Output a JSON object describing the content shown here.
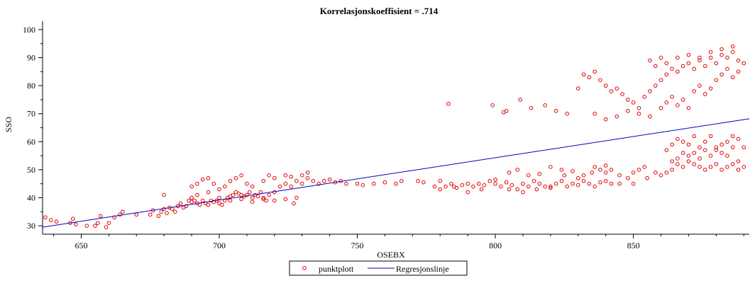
{
  "chart_data": {
    "type": "scatter",
    "title": "Korrelasjonskoeffisient =  .714",
    "xlabel": "OSEBX",
    "ylabel": "SSO",
    "xlim": [
      636,
      892
    ],
    "ylim": [
      27,
      103
    ],
    "x_ticks": [
      650,
      700,
      750,
      800,
      850
    ],
    "y_ticks": [
      30,
      40,
      50,
      60,
      70,
      80,
      90,
      100
    ],
    "colors": {
      "points": "#e00000",
      "line": "#0000c0"
    },
    "legend": {
      "position": "bottom",
      "entries": [
        {
          "label": "punktplott",
          "kind": "marker"
        },
        {
          "label": "Regresjonslinje",
          "kind": "line"
        }
      ]
    },
    "series": [
      {
        "name": "punktplott",
        "kind": "scatter",
        "points": [
          [
            637,
            33
          ],
          [
            639,
            32
          ],
          [
            641,
            31.5
          ],
          [
            646,
            31
          ],
          [
            647,
            32.5
          ],
          [
            648,
            30.5
          ],
          [
            652,
            30
          ],
          [
            655,
            30
          ],
          [
            656,
            31
          ],
          [
            657,
            33.5
          ],
          [
            659,
            29.5
          ],
          [
            660,
            31
          ],
          [
            662,
            33
          ],
          [
            664,
            34
          ],
          [
            665,
            35
          ],
          [
            670,
            34
          ],
          [
            675,
            34
          ],
          [
            676,
            35.5
          ],
          [
            678,
            33.5
          ],
          [
            679,
            35
          ],
          [
            680,
            36
          ],
          [
            681,
            34.5
          ],
          [
            682,
            36.5
          ],
          [
            683,
            36
          ],
          [
            684,
            35
          ],
          [
            685,
            37
          ],
          [
            686,
            38
          ],
          [
            687,
            36.5
          ],
          [
            688,
            37
          ],
          [
            689,
            39
          ],
          [
            690,
            38.5
          ],
          [
            691,
            39
          ],
          [
            692,
            38
          ],
          [
            693,
            37.5
          ],
          [
            694,
            39
          ],
          [
            695,
            38
          ],
          [
            696,
            37.5
          ],
          [
            697,
            39
          ],
          [
            698,
            38.5
          ],
          [
            699,
            39
          ],
          [
            700,
            38
          ],
          [
            701,
            37.5
          ],
          [
            702,
            39
          ],
          [
            703,
            40
          ],
          [
            704,
            40.5
          ],
          [
            705,
            41
          ],
          [
            706,
            42
          ],
          [
            707,
            41.5
          ],
          [
            708,
            41
          ],
          [
            709,
            40.5
          ],
          [
            710,
            41
          ],
          [
            711,
            42
          ],
          [
            712,
            40
          ],
          [
            713,
            41
          ],
          [
            714,
            40.5
          ],
          [
            715,
            42
          ],
          [
            716,
            39.5
          ],
          [
            717,
            39
          ],
          [
            718,
            41
          ],
          [
            720,
            42
          ],
          [
            722,
            44
          ],
          [
            724,
            45
          ],
          [
            726,
            44
          ],
          [
            728,
            46
          ],
          [
            730,
            45
          ],
          [
            732,
            47
          ],
          [
            734,
            46
          ],
          [
            736,
            45
          ],
          [
            738,
            46
          ],
          [
            740,
            46.5
          ],
          [
            742,
            45.5
          ],
          [
            744,
            46
          ],
          [
            746,
            45
          ],
          [
            690,
            44
          ],
          [
            692,
            45
          ],
          [
            694,
            46.5
          ],
          [
            696,
            47
          ],
          [
            698,
            45
          ],
          [
            700,
            43
          ],
          [
            702,
            44
          ],
          [
            704,
            46
          ],
          [
            706,
            47
          ],
          [
            708,
            48
          ],
          [
            710,
            45
          ],
          [
            712,
            44
          ],
          [
            716,
            46
          ],
          [
            718,
            48
          ],
          [
            720,
            47
          ],
          [
            724,
            48
          ],
          [
            726,
            47.5
          ],
          [
            730,
            48
          ],
          [
            732,
            49
          ],
          [
            680,
            41
          ],
          [
            690,
            40
          ],
          [
            692,
            41
          ],
          [
            696,
            42
          ],
          [
            700,
            40
          ],
          [
            704,
            39
          ],
          [
            708,
            39.5
          ],
          [
            712,
            38.5
          ],
          [
            716,
            40
          ],
          [
            720,
            39
          ],
          [
            724,
            39.5
          ],
          [
            727,
            38
          ],
          [
            728,
            40
          ],
          [
            750,
            45
          ],
          [
            752,
            44.5
          ],
          [
            756,
            45
          ],
          [
            760,
            45.5
          ],
          [
            764,
            45
          ],
          [
            766,
            46
          ],
          [
            772,
            46
          ],
          [
            774,
            45.5
          ],
          [
            778,
            44
          ],
          [
            780,
            43
          ],
          [
            782,
            44
          ],
          [
            784,
            45
          ],
          [
            786,
            43.5
          ],
          [
            788,
            44.5
          ],
          [
            790,
            45
          ],
          [
            792,
            44
          ],
          [
            794,
            45
          ],
          [
            796,
            44.5
          ],
          [
            798,
            46
          ],
          [
            800,
            45
          ],
          [
            802,
            44
          ],
          [
            804,
            45.5
          ],
          [
            806,
            44.5
          ],
          [
            808,
            43
          ],
          [
            810,
            45
          ],
          [
            812,
            44
          ],
          [
            814,
            46
          ],
          [
            816,
            45
          ],
          [
            818,
            44
          ],
          [
            820,
            43.5
          ],
          [
            822,
            45
          ],
          [
            824,
            46
          ],
          [
            826,
            44
          ],
          [
            828,
            45
          ],
          [
            830,
            44.5
          ],
          [
            832,
            46
          ],
          [
            834,
            45
          ],
          [
            836,
            44
          ],
          [
            838,
            45.5
          ],
          [
            840,
            46
          ],
          [
            842,
            45
          ],
          [
            780,
            46
          ],
          [
            785,
            44
          ],
          [
            790,
            42
          ],
          [
            795,
            43
          ],
          [
            800,
            46.5
          ],
          [
            805,
            43
          ],
          [
            810,
            42
          ],
          [
            815,
            43
          ],
          [
            820,
            44
          ],
          [
            825,
            48
          ],
          [
            830,
            47
          ],
          [
            835,
            49
          ],
          [
            838,
            50
          ],
          [
            840,
            49
          ],
          [
            842,
            50
          ],
          [
            845,
            48
          ],
          [
            850,
            49
          ],
          [
            852,
            50
          ],
          [
            854,
            51
          ],
          [
            805,
            49
          ],
          [
            808,
            50
          ],
          [
            812,
            48
          ],
          [
            816,
            48.5
          ],
          [
            820,
            51
          ],
          [
            824,
            50
          ],
          [
            828,
            49.5
          ],
          [
            832,
            48
          ],
          [
            836,
            51
          ],
          [
            840,
            51.5
          ],
          [
            845,
            45
          ],
          [
            848,
            47
          ],
          [
            850,
            45
          ],
          [
            855,
            47
          ],
          [
            858,
            49
          ],
          [
            860,
            48
          ],
          [
            862,
            49
          ],
          [
            864,
            50
          ],
          [
            866,
            52
          ],
          [
            868,
            51
          ],
          [
            870,
            55
          ],
          [
            872,
            56
          ],
          [
            874,
            54
          ],
          [
            876,
            57
          ],
          [
            878,
            55
          ],
          [
            880,
            58
          ],
          [
            882,
            56
          ],
          [
            884,
            60
          ],
          [
            886,
            62
          ],
          [
            888,
            61
          ],
          [
            890,
            58
          ],
          [
            862,
            57
          ],
          [
            864,
            59
          ],
          [
            866,
            61
          ],
          [
            868,
            60
          ],
          [
            870,
            59
          ],
          [
            872,
            62
          ],
          [
            874,
            58
          ],
          [
            876,
            60
          ],
          [
            878,
            62
          ],
          [
            880,
            57
          ],
          [
            882,
            59
          ],
          [
            884,
            55
          ],
          [
            886,
            58
          ],
          [
            888,
            53
          ],
          [
            890,
            51
          ],
          [
            864,
            53
          ],
          [
            866,
            54
          ],
          [
            868,
            56
          ],
          [
            870,
            53
          ],
          [
            872,
            52
          ],
          [
            874,
            51
          ],
          [
            876,
            50
          ],
          [
            878,
            51
          ],
          [
            880,
            52
          ],
          [
            882,
            50
          ],
          [
            884,
            51
          ],
          [
            886,
            52
          ],
          [
            888,
            50
          ],
          [
            783,
            73.5
          ],
          [
            799,
            73
          ],
          [
            803,
            70.5
          ],
          [
            804,
            71
          ],
          [
            809,
            75
          ],
          [
            813,
            72
          ],
          [
            818,
            73
          ],
          [
            822,
            71
          ],
          [
            826,
            70
          ],
          [
            830,
            79
          ],
          [
            832,
            84
          ],
          [
            834,
            83
          ],
          [
            836,
            85
          ],
          [
            838,
            82
          ],
          [
            840,
            80
          ],
          [
            842,
            78
          ],
          [
            844,
            79
          ],
          [
            846,
            77
          ],
          [
            848,
            75
          ],
          [
            850,
            74
          ],
          [
            852,
            72
          ],
          [
            854,
            76
          ],
          [
            856,
            78
          ],
          [
            858,
            80
          ],
          [
            860,
            82
          ],
          [
            862,
            84
          ],
          [
            864,
            86
          ],
          [
            866,
            85
          ],
          [
            868,
            87
          ],
          [
            870,
            88
          ],
          [
            872,
            86
          ],
          [
            874,
            89
          ],
          [
            876,
            87
          ],
          [
            878,
            90
          ],
          [
            880,
            88
          ],
          [
            882,
            91
          ],
          [
            884,
            90
          ],
          [
            886,
            92
          ],
          [
            888,
            89
          ],
          [
            890,
            88
          ],
          [
            836,
            70
          ],
          [
            840,
            68
          ],
          [
            844,
            69
          ],
          [
            848,
            71
          ],
          [
            852,
            70
          ],
          [
            856,
            69
          ],
          [
            860,
            72
          ],
          [
            862,
            74
          ],
          [
            864,
            76
          ],
          [
            866,
            73
          ],
          [
            868,
            75
          ],
          [
            870,
            72
          ],
          [
            872,
            78
          ],
          [
            874,
            80
          ],
          [
            876,
            77
          ],
          [
            878,
            79
          ],
          [
            880,
            82
          ],
          [
            882,
            84
          ],
          [
            884,
            86
          ],
          [
            886,
            83
          ],
          [
            888,
            85
          ],
          [
            856,
            89
          ],
          [
            858,
            87
          ],
          [
            860,
            90
          ],
          [
            862,
            88
          ],
          [
            866,
            90
          ],
          [
            870,
            91
          ],
          [
            874,
            90
          ],
          [
            878,
            92
          ],
          [
            882,
            93
          ],
          [
            886,
            94
          ]
        ]
      },
      {
        "name": "Regresjonslinje",
        "kind": "line",
        "points": [
          [
            636,
            29.5
          ],
          [
            892,
            68.2
          ]
        ]
      }
    ]
  }
}
